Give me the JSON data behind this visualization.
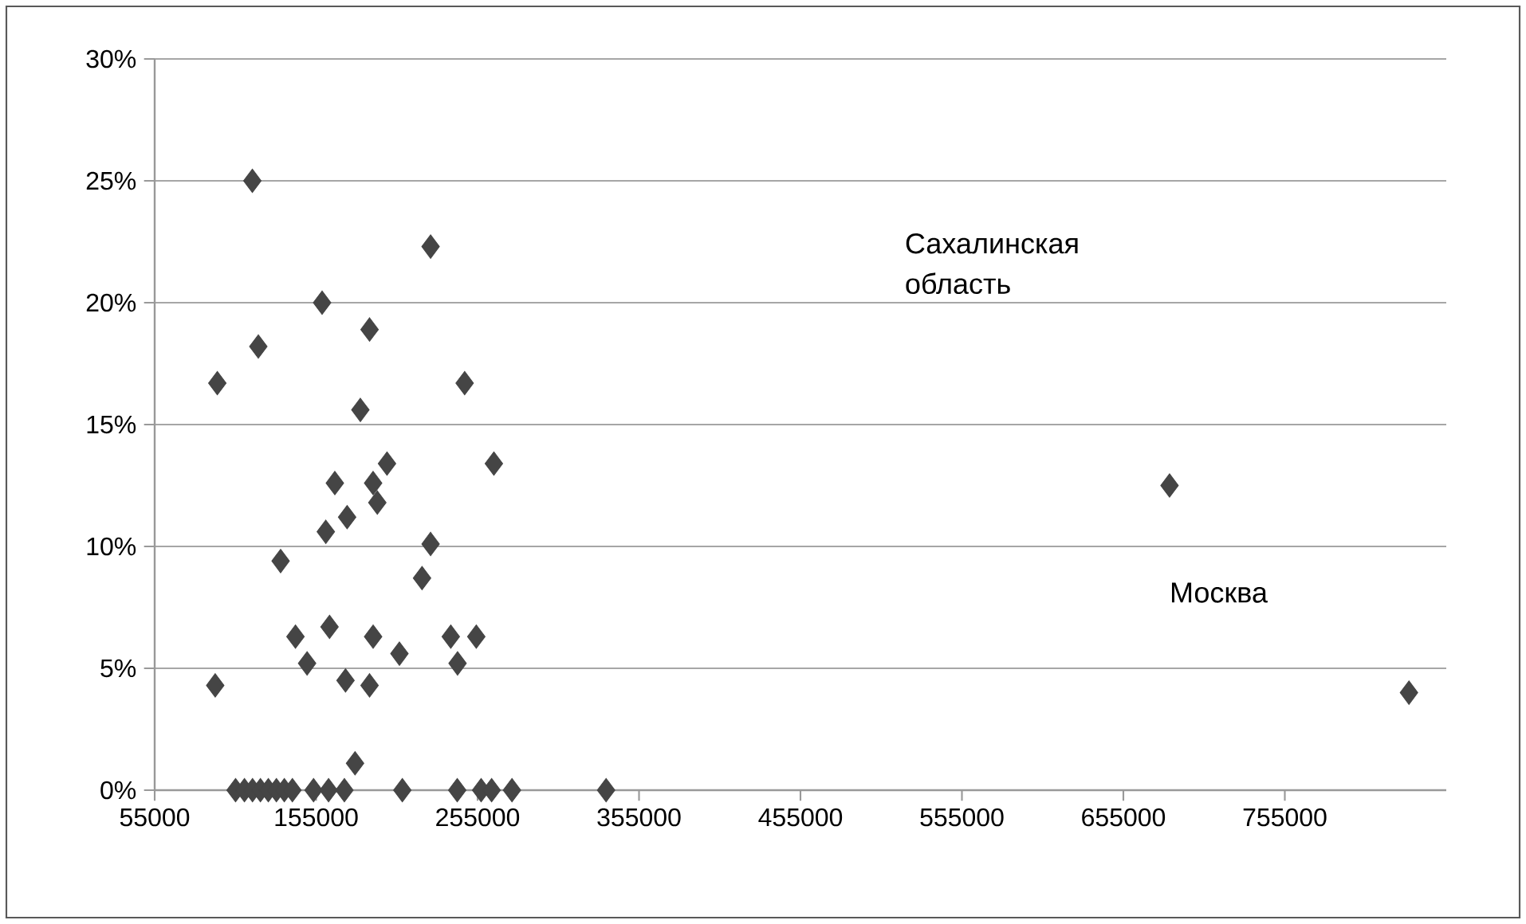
{
  "chart_data": {
    "type": "scatter",
    "marker": "diamond",
    "grid": "y",
    "color": "#454545",
    "x": [
      115500,
      225900,
      158700,
      188100,
      119200,
      93800,
      247000,
      182400,
      198900,
      265100,
      166600,
      190300,
      192900,
      174200,
      161000,
      225900,
      220600,
      133000,
      142200,
      163300,
      190300,
      238400,
      254200,
      149400,
      206600,
      242600,
      92500,
      173200,
      188100,
      179100,
      105100,
      110600,
      115600,
      120500,
      125400,
      130400,
      135300,
      140300,
      153400,
      162700,
      172500,
      208400,
      242400,
      257200,
      263700,
      276300,
      334600,
      683600,
      831900
    ],
    "values": [
      25,
      22.3,
      20,
      18.9,
      18.2,
      16.7,
      16.7,
      15.6,
      13.4,
      13.4,
      12.6,
      12.6,
      11.8,
      11.2,
      10.6,
      10.1,
      8.7,
      9.4,
      6.3,
      6.7,
      6.3,
      6.3,
      6.3,
      5.2,
      5.6,
      5.2,
      4.3,
      4.5,
      4.3,
      1.1,
      0,
      0,
      0,
      0,
      0,
      0,
      0,
      0,
      0,
      0,
      0,
      0,
      0,
      0,
      0,
      0,
      0,
      12.5,
      4
    ],
    "xlim": [
      55000,
      855000
    ],
    "xticks": [
      55000,
      155000,
      255000,
      355000,
      455000,
      555000,
      655000,
      755000
    ],
    "ylim": [
      0,
      30
    ],
    "yticks": [
      {
        "value": 0,
        "label": "0%"
      },
      {
        "value": 5,
        "label": "5%"
      },
      {
        "value": 10,
        "label": "10%"
      },
      {
        "value": 15,
        "label": "15%"
      },
      {
        "value": 20,
        "label": "20%"
      },
      {
        "value": 25,
        "label": "25%"
      },
      {
        "value": 30,
        "label": "30%"
      }
    ],
    "annotations": [
      "Сахалинская область",
      "Москва"
    ]
  }
}
